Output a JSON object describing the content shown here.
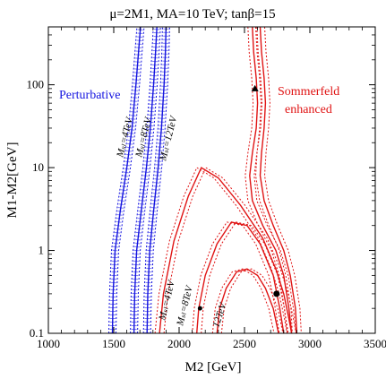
{
  "chart_data": {
    "type": "line",
    "title": "μ=2M1, MA=10 TeV; tanβ=15",
    "xlabel": "M2 [GeV]",
    "ylabel": "M1-M2[GeV]",
    "xlim": [
      1000,
      3500
    ],
    "ylim": [
      0.1,
      500
    ],
    "y_scale": "log",
    "x_ticks": [
      1000,
      1500,
      2000,
      2500,
      3000,
      3500
    ],
    "x_tick_labels": [
      "1000",
      "1500",
      "2000",
      "2500",
      "3000",
      "3500"
    ],
    "y_ticks": [
      0.1,
      1,
      10,
      100
    ],
    "y_tick_labels": [
      "0.1",
      "1",
      "10",
      "100"
    ],
    "grid": false,
    "annotations": {
      "perturbative": "Perturbative",
      "sommerfeld_line1": "Sommerfeld",
      "sommerfeld_line2": "enhanced",
      "blue_4": "Mₛₗ=4TeV",
      "blue_8": "Mₛₗ=8TeV",
      "blue_12": "Mₛₗ=12TeV",
      "red_4": "Mₛₗ=4TeV",
      "red_8": "Mₛₗ=8TeV",
      "red_12": "12TeV"
    },
    "series": [
      {
        "group": "perturbative",
        "color": "#1414e0",
        "x": [
          1490,
          1495,
          1510,
          1550,
          1600,
          1640,
          1670,
          1690,
          1705
        ],
        "y": [
          0.1,
          0.3,
          1,
          3,
          10,
          30,
          100,
          250,
          500
        ]
      },
      {
        "group": "perturbative",
        "color": "#1414e0",
        "x": [
          1655,
          1660,
          1675,
          1710,
          1750,
          1780,
          1805,
          1820,
          1830
        ],
        "y": [
          0.1,
          0.3,
          1,
          3,
          10,
          30,
          100,
          250,
          500
        ]
      },
      {
        "group": "perturbative",
        "color": "#1414e0",
        "x": [
          1755,
          1760,
          1775,
          1805,
          1840,
          1865,
          1885,
          1895,
          1900
        ],
        "y": [
          0.1,
          0.3,
          1,
          3,
          10,
          30,
          100,
          250,
          500
        ]
      },
      {
        "group": "sommerfeld",
        "color": "#e01414",
        "x": [
          1850,
          1880,
          1960,
          2070,
          2170,
          2300,
          2470,
          2640,
          2740,
          2800,
          2840,
          2860
        ],
        "y": [
          0.1,
          0.3,
          1.3,
          4.5,
          10,
          7.5,
          3.5,
          1.4,
          0.6,
          0.3,
          0.15,
          0.1
        ]
      },
      {
        "group": "sommerfeld",
        "color": "#e01414",
        "x": [
          2135,
          2150,
          2200,
          2290,
          2400,
          2520,
          2620,
          2720,
          2770,
          2800
        ],
        "y": [
          0.1,
          0.2,
          0.5,
          1.2,
          2.2,
          2.0,
          1.2,
          0.5,
          0.2,
          0.1
        ]
      },
      {
        "group": "sommerfeld",
        "color": "#e01414",
        "x": [
          2290,
          2310,
          2360,
          2440,
          2520,
          2600,
          2660,
          2720,
          2760
        ],
        "y": [
          0.1,
          0.2,
          0.35,
          0.55,
          0.6,
          0.5,
          0.35,
          0.2,
          0.1
        ]
      },
      {
        "group": "sommerfeld",
        "color": "#e01414",
        "x": [
          2560,
          2570,
          2590,
          2600,
          2590,
          2560,
          2540,
          2560,
          2640,
          2740,
          2800,
          2840,
          2860
        ],
        "y": [
          500,
          250,
          120,
          60,
          30,
          15,
          8,
          4,
          2,
          1,
          0.5,
          0.2,
          0.1
        ]
      },
      {
        "group": "sommerfeld",
        "color": "#e01414",
        "x": [
          2620,
          2630,
          2650,
          2660,
          2650,
          2630,
          2620,
          2650,
          2720,
          2800,
          2850,
          2890,
          2900
        ],
        "y": [
          500,
          250,
          120,
          60,
          30,
          15,
          8,
          4,
          2,
          1,
          0.5,
          0.2,
          0.1
        ]
      }
    ],
    "markers": [
      {
        "shape": "triangle",
        "x": 2580,
        "y": 90
      },
      {
        "shape": "circle",
        "x": 2160,
        "y": 0.2
      },
      {
        "shape": "circle",
        "x": 2745,
        "y": 0.3
      }
    ]
  }
}
